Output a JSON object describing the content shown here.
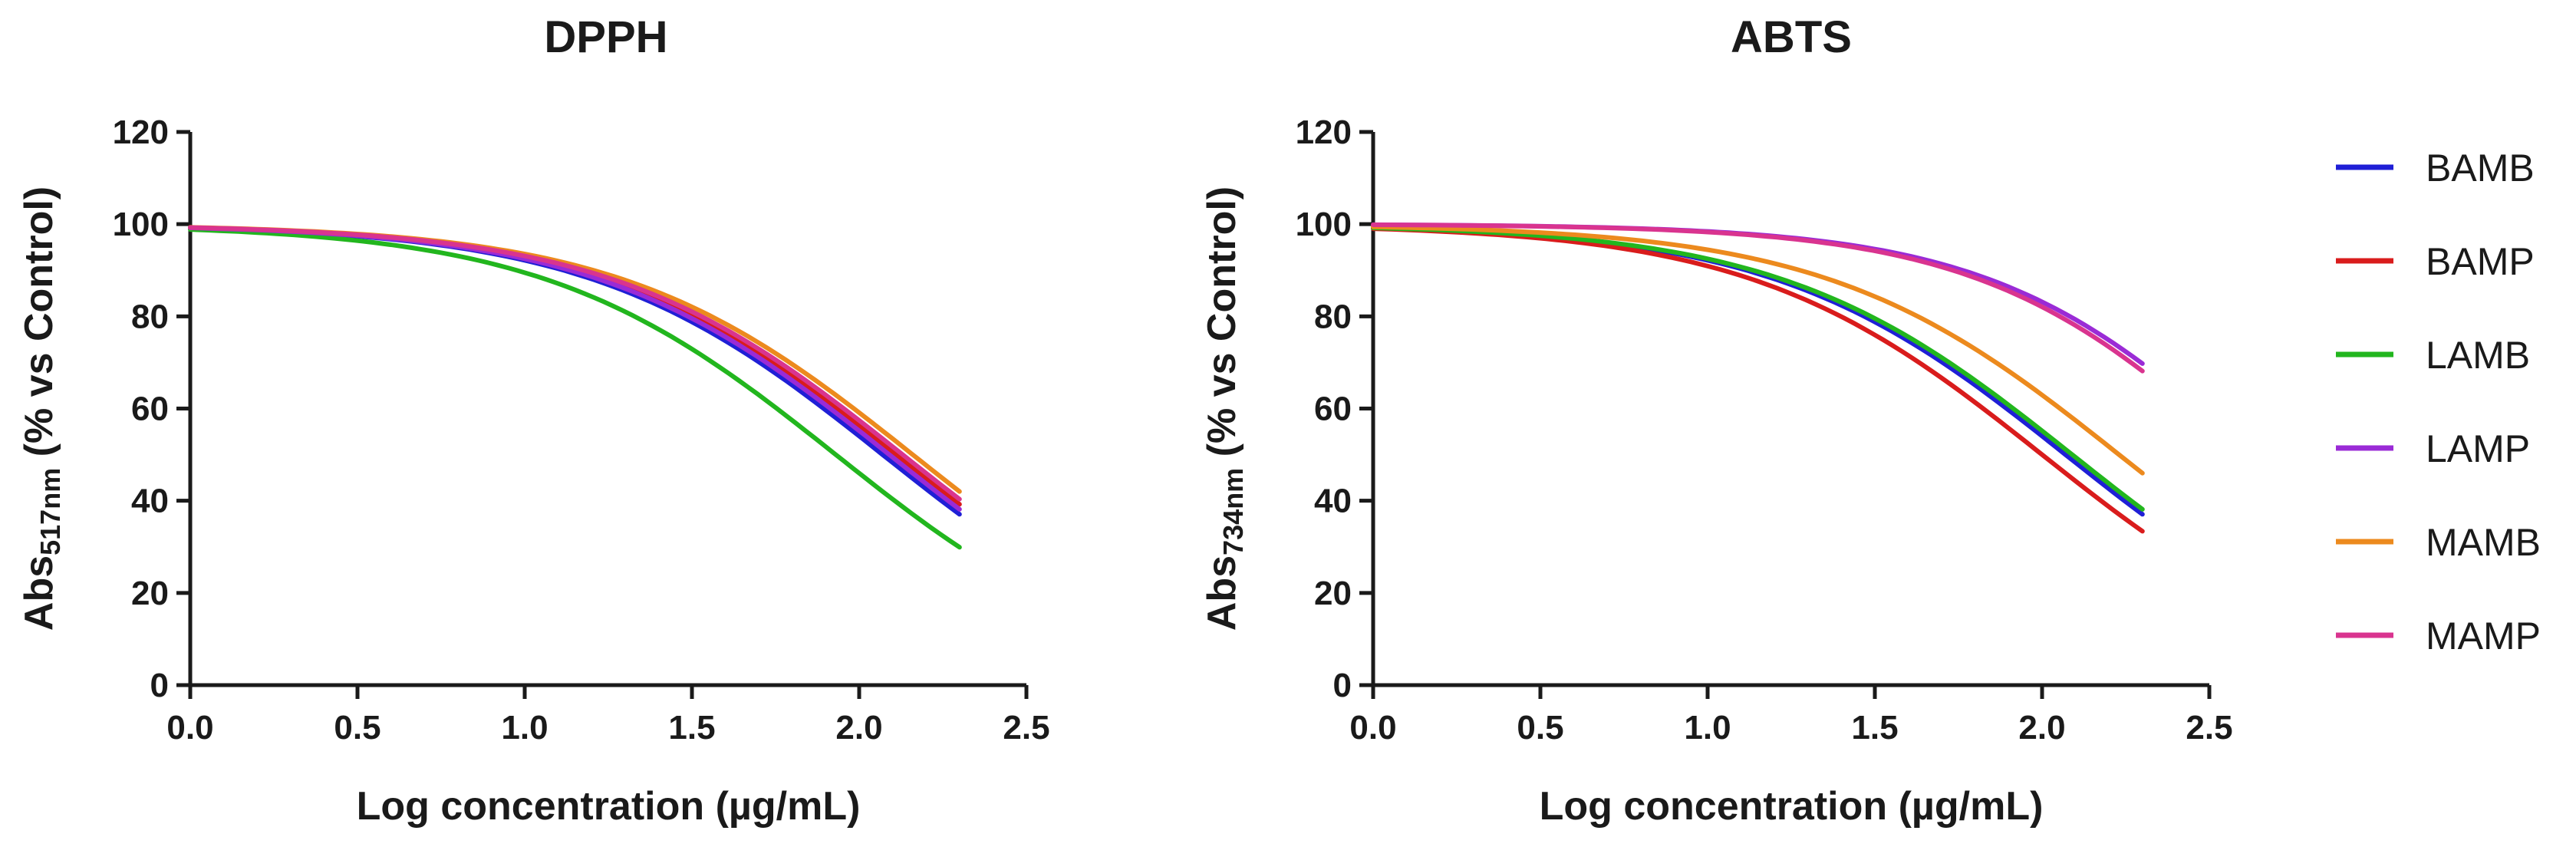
{
  "chart_data": [
    {
      "type": "line",
      "title": "DPPH",
      "xlabel": "Log concentration (µg/mL)",
      "ylabel": {
        "main": "Abs",
        "subscript": "517nm",
        "suffix": " (% vs Control)"
      },
      "xlim": [
        0,
        2.5
      ],
      "ylim": [
        0,
        120
      ],
      "xticks": [
        0.0,
        0.5,
        1.0,
        1.5,
        2.0,
        2.5
      ],
      "xtick_labels": [
        "0.0",
        "0.5",
        "1.0",
        "1.5",
        "2.0",
        "2.5"
      ],
      "yticks": [
        0,
        20,
        40,
        60,
        80,
        100,
        120
      ],
      "ytick_labels": [
        "0",
        "20",
        "40",
        "60",
        "80",
        "100",
        "120"
      ],
      "x_range": [
        0,
        2.3
      ],
      "series": [
        {
          "name": "BAMB",
          "top": 100,
          "ec50": 2.07,
          "hill": 1.0,
          "end_value": 37
        },
        {
          "name": "BAMP",
          "top": 100,
          "ec50": 2.11,
          "hill": 1.0,
          "end_value": 39
        },
        {
          "name": "LAMB",
          "top": 100,
          "ec50": 1.93,
          "hill": 1.0,
          "end_value": 30
        },
        {
          "name": "LAMP",
          "top": 100,
          "ec50": 2.09,
          "hill": 1.0,
          "end_value": 38
        },
        {
          "name": "MAMB",
          "top": 100,
          "ec50": 2.16,
          "hill": 1.0,
          "end_value": 41
        },
        {
          "name": "MAMP",
          "top": 100,
          "ec50": 2.13,
          "hill": 1.0,
          "end_value": 40
        }
      ]
    },
    {
      "type": "line",
      "title": "ABTS",
      "xlabel": "Log concentration (µg/mL)",
      "ylabel": {
        "main": "Abs",
        "subscript": "734nm",
        "suffix": " (% vs Control)"
      },
      "xlim": [
        0,
        2.5
      ],
      "ylim": [
        0,
        120
      ],
      "xticks": [
        0.0,
        0.5,
        1.0,
        1.5,
        2.0,
        2.5
      ],
      "xtick_labels": [
        "0.0",
        "0.5",
        "1.0",
        "1.5",
        "2.0",
        "2.5"
      ],
      "yticks": [
        0,
        20,
        40,
        60,
        80,
        100,
        120
      ],
      "ytick_labels": [
        "0",
        "20",
        "40",
        "60",
        "80",
        "100",
        "120"
      ],
      "x_range": [
        0,
        2.3
      ],
      "series": [
        {
          "name": "BAMB",
          "top": 100,
          "ec50": 2.07,
          "hill": 1.0,
          "end_value": 37
        },
        {
          "name": "BAMP",
          "top": 100,
          "ec50": 2.0,
          "hill": 1.0,
          "end_value": 34
        },
        {
          "name": "LAMB",
          "top": 100,
          "ec50": 2.09,
          "hill": 1.0,
          "end_value": 38
        },
        {
          "name": "LAMP",
          "top": 100,
          "ec50": 2.63,
          "hill": 1.1,
          "end_value": 67
        },
        {
          "name": "MAMB",
          "top": 100,
          "ec50": 2.23,
          "hill": 1.0,
          "end_value": 46
        },
        {
          "name": "MAMP",
          "top": 100,
          "ec50": 2.6,
          "hill": 1.1,
          "end_value": 66
        }
      ]
    }
  ],
  "legend": {
    "placement": "right",
    "items": [
      {
        "name": "BAMB",
        "color": "#1f1fd6"
      },
      {
        "name": "BAMP",
        "color": "#d91c1c"
      },
      {
        "name": "LAMB",
        "color": "#22b61e"
      },
      {
        "name": "LAMP",
        "color": "#9a2bd6"
      },
      {
        "name": "MAMB",
        "color": "#ec8a1e"
      },
      {
        "name": "MAMP",
        "color": "#d9348f"
      }
    ]
  }
}
